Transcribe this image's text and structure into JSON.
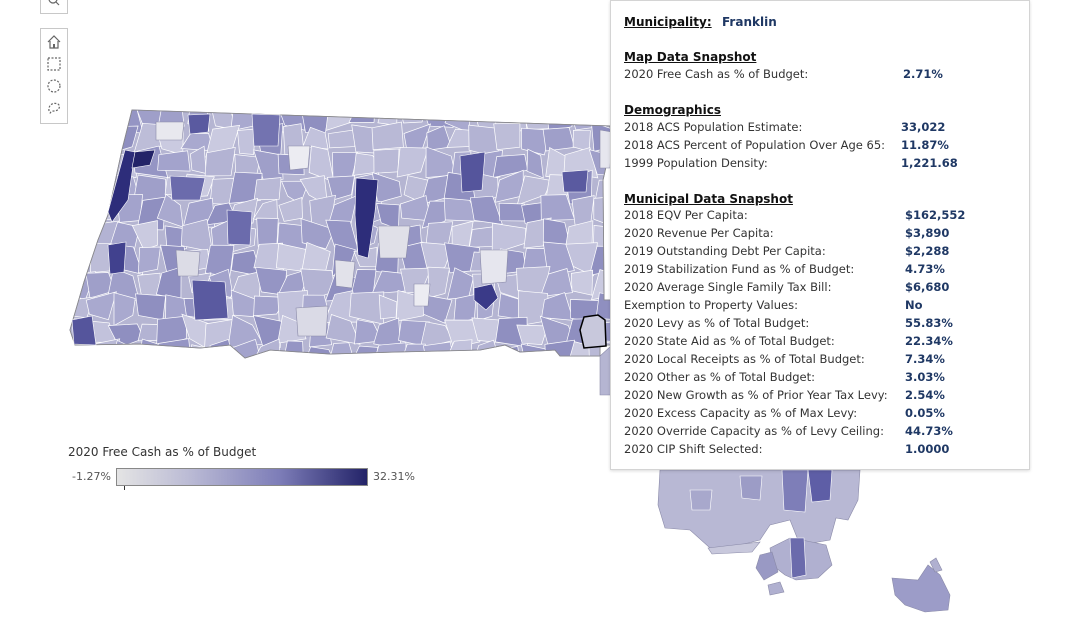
{
  "legend": {
    "title": "2020 Free Cash as % of Budget",
    "min_label": "-1.27%",
    "max_label": "32.31%",
    "color_low": "#e4e4e4",
    "color_high": "#232368"
  },
  "toolbar": {
    "items": [
      "search-icon",
      "home-icon",
      "rectangle-select-icon",
      "radial-select-icon",
      "lasso-select-icon"
    ]
  },
  "tooltip": {
    "municipality_label": "Municipality:",
    "municipality_value": "Franklin",
    "map_snapshot_heading": "Map Data Snapshot",
    "map_rows": [
      {
        "label": "2020 Free Cash as % of Budget:",
        "value": "2.71%"
      }
    ],
    "demographics_heading": "Demographics",
    "demographics_rows": [
      {
        "label": "2018 ACS Population Estimate:",
        "value": "33,022"
      },
      {
        "label": "2018 ACS Percent of Population Over Age 65:",
        "value": "11.87%"
      },
      {
        "label": "1999 Population Density:",
        "value": "1,221.68"
      }
    ],
    "municipal_heading": "Municipal Data Snapshot",
    "municipal_rows": [
      {
        "label": "2018 EQV Per Capita:",
        "value": "$162,552"
      },
      {
        "label": "2020 Revenue Per Capita:",
        "value": "$3,890"
      },
      {
        "label": "2019 Outstanding Debt Per Capita:",
        "value": "$2,288"
      },
      {
        "label": "2019 Stabilization Fund as % of Budget:",
        "value": "4.73%"
      },
      {
        "label": "2020 Average Single Family Tax Bill:",
        "value": "$6,680"
      },
      {
        "label": "Exemption to Property Values:",
        "value": "No"
      },
      {
        "label": "2020 Levy as % of Total Budget:",
        "value": "55.83%"
      },
      {
        "label": "2020 State Aid as % of Total Budget:",
        "value": "22.34%"
      },
      {
        "label": "2020 Local Receipts as % of Total Budget:",
        "value": "7.34%"
      },
      {
        "label": "2020 Other as % of Total Budget:",
        "value": "3.03%"
      },
      {
        "label": "2020 New Growth as % of Prior Year Tax Levy:",
        "value": "2.54%"
      },
      {
        "label": "2020 Excess Capacity as % of Max Levy:",
        "value": "0.05%"
      },
      {
        "label": "2020 Override Capacity as % of Levy Ceiling:",
        "value": "44.73%"
      },
      {
        "label": "2020 CIP Shift Selected:",
        "value": "1.0000"
      }
    ]
  }
}
